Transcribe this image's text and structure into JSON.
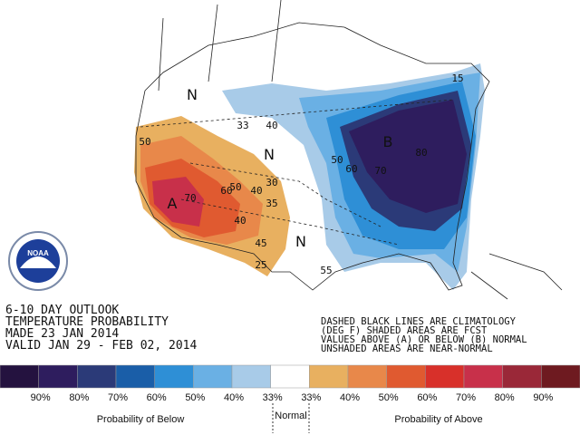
{
  "title_lines": [
    "6-10 DAY OUTLOOK",
    "TEMPERATURE PROBABILITY",
    "MADE  23 JAN 2014",
    "VALID  JAN 29 - FEB 02, 2014"
  ],
  "notes": [
    "DASHED BLACK LINES ARE CLIMATOLOGY",
    "(DEG F) SHADED AREAS ARE FCST",
    "VALUES ABOVE (A) OR BELOW (B) NORMAL",
    "UNSHADED AREAS ARE NEAR-NORMAL"
  ],
  "logo": "NOAA",
  "map_labels": [
    "N",
    "N",
    "N",
    "A",
    "B",
    "33",
    "40",
    "50",
    "40",
    "30",
    "35",
    "40",
    "50",
    "60",
    "70",
    "50",
    "60",
    "70",
    "80",
    "45",
    "25",
    "55",
    "15"
  ],
  "legend": {
    "colors": [
      "#24123f",
      "#2e1d5e",
      "#2b3a78",
      "#1a5ea8",
      "#2e8fd6",
      "#6ab0e4",
      "#a8cbe8",
      "#ffffff",
      "#e8b060",
      "#e8884a",
      "#e05a30",
      "#d8302a",
      "#c8304a",
      "#9a2838",
      "#6e1a20"
    ],
    "labels": [
      "90%",
      "80%",
      "70%",
      "60%",
      "50%",
      "40%",
      "33%",
      "33%",
      "40%",
      "50%",
      "60%",
      "70%",
      "80%",
      "90%"
    ],
    "below": "Probability of Below",
    "normal": "Normal",
    "above": "Probability of Above"
  }
}
